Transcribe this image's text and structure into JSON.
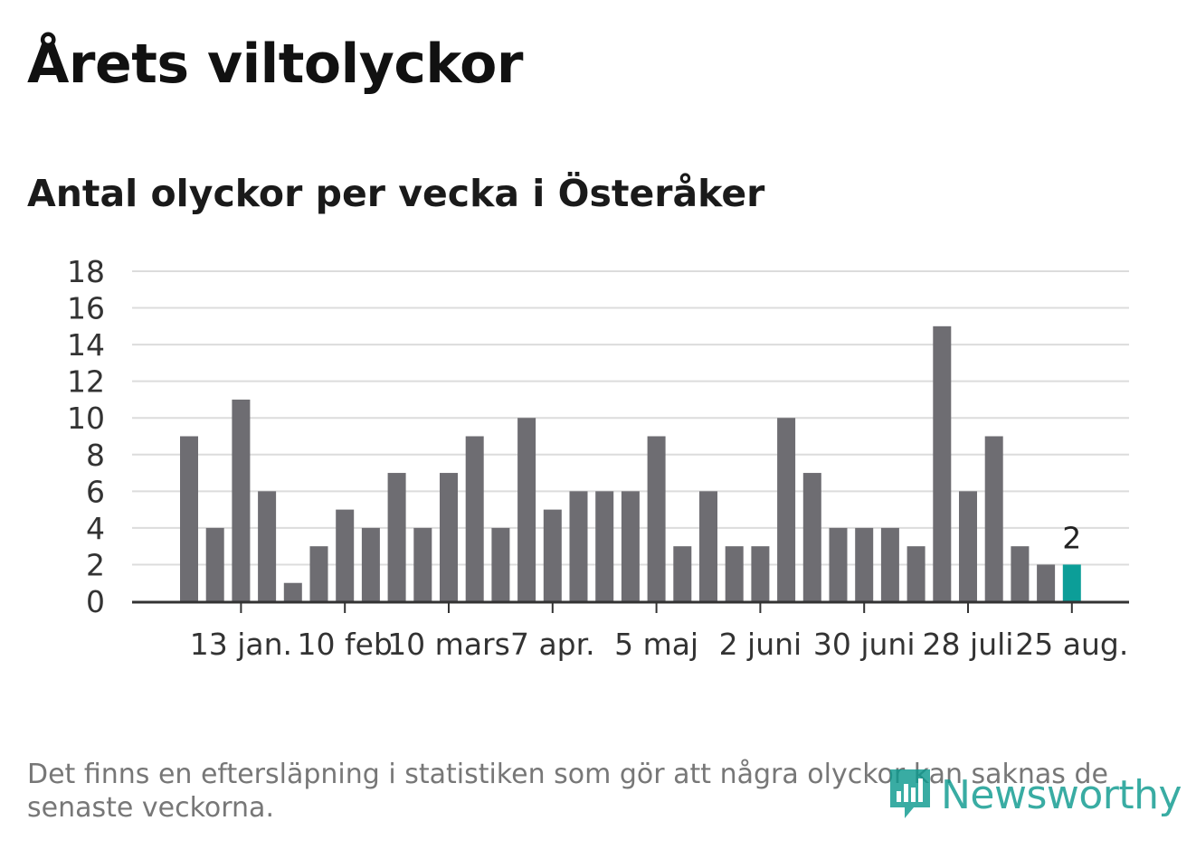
{
  "title": "Årets viltolyckor",
  "subtitle": "Antal olyckor per vecka i Österåker",
  "footnote": "Det finns en eftersläpning i statistiken som gör att några olyckor kan saknas de senaste veckorna.",
  "logo": {
    "text": "Newsworthy",
    "icon": "newsworthy-logo-icon",
    "color": "#0e9a8f"
  },
  "colors": {
    "bar": "#6e6d72",
    "highlight": "#0c9e98",
    "grid": "#dcdcdc",
    "axis": "#333333"
  },
  "chart_data": {
    "type": "bar",
    "title": "Antal olyckor per vecka i Österåker",
    "ylim": [
      0,
      18
    ],
    "yticks": [
      0,
      2,
      4,
      6,
      8,
      10,
      12,
      14,
      16,
      18
    ],
    "grid": true,
    "x_tick_labels": [
      "13 jan.",
      "10 feb",
      "10 mars",
      "7 apr.",
      "5 maj",
      "2 juni",
      "30 juni",
      "28 juli",
      "25 aug."
    ],
    "x_tick_positions": [
      2,
      6,
      10,
      14,
      18,
      22,
      26,
      30,
      34
    ],
    "values": [
      9,
      4,
      11,
      6,
      1,
      3,
      5,
      4,
      7,
      4,
      7,
      9,
      4,
      10,
      5,
      6,
      6,
      6,
      9,
      3,
      6,
      3,
      3,
      10,
      7,
      4,
      4,
      4,
      3,
      15,
      6,
      9,
      3,
      2,
      2
    ],
    "highlight_index": 34,
    "highlight_label": "2"
  }
}
